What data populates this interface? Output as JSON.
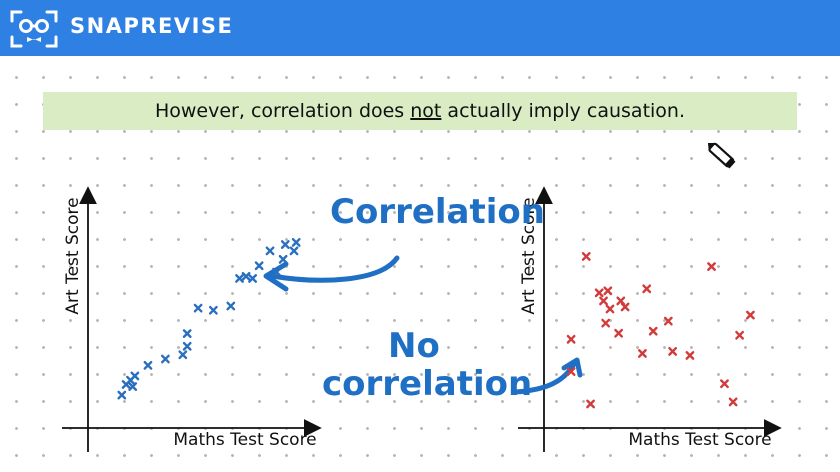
{
  "header": {
    "brand": "SNAPREVISE",
    "logo_icon": "glasses-face-icon",
    "background": "#2f80e3"
  },
  "banner": {
    "text_before": "However, correlation does ",
    "text_emphasis": "not",
    "text_after": " actually imply causation.",
    "background": "#d9ecc4"
  },
  "annotations": {
    "correlation": "Correlation",
    "no": "No",
    "correlation2": "correlation",
    "color": "#1f6fc4"
  },
  "cursor_icon": "pen-cursor-icon",
  "chart_data": [
    {
      "type": "scatter",
      "xlabel": "Maths Test Score",
      "ylabel": "Art Test Score",
      "color": "#2a6fbf",
      "marker": "x",
      "points": [
        [
          10,
          8
        ],
        [
          12,
          13
        ],
        [
          14,
          15
        ],
        [
          15,
          12
        ],
        [
          16,
          17
        ],
        [
          22,
          22
        ],
        [
          30,
          25
        ],
        [
          38,
          27
        ],
        [
          40,
          31
        ],
        [
          40,
          37
        ],
        [
          45,
          49
        ],
        [
          52,
          48
        ],
        [
          60,
          50
        ],
        [
          64,
          63
        ],
        [
          67,
          64
        ],
        [
          70,
          63
        ],
        [
          73,
          69
        ],
        [
          78,
          76
        ],
        [
          81,
          66
        ],
        [
          84,
          72
        ],
        [
          85,
          79
        ],
        [
          89,
          76
        ],
        [
          90,
          80
        ]
      ]
    },
    {
      "type": "scatter",
      "xlabel": "Maths Test Score",
      "ylabel": "Art Test Score",
      "color": "#d23b3b",
      "marker": "x",
      "points": [
        [
          7,
          36
        ],
        [
          7,
          20
        ],
        [
          14,
          77
        ],
        [
          16,
          4
        ],
        [
          20,
          59
        ],
        [
          22,
          55
        ],
        [
          23,
          44
        ],
        [
          24,
          60
        ],
        [
          25,
          51
        ],
        [
          29,
          39
        ],
        [
          30,
          55
        ],
        [
          32,
          52
        ],
        [
          40,
          29
        ],
        [
          42,
          61
        ],
        [
          45,
          40
        ],
        [
          52,
          45
        ],
        [
          54,
          30
        ],
        [
          62,
          28
        ],
        [
          72,
          72
        ],
        [
          78,
          14
        ],
        [
          82,
          5
        ],
        [
          85,
          38
        ],
        [
          90,
          48
        ]
      ]
    }
  ]
}
